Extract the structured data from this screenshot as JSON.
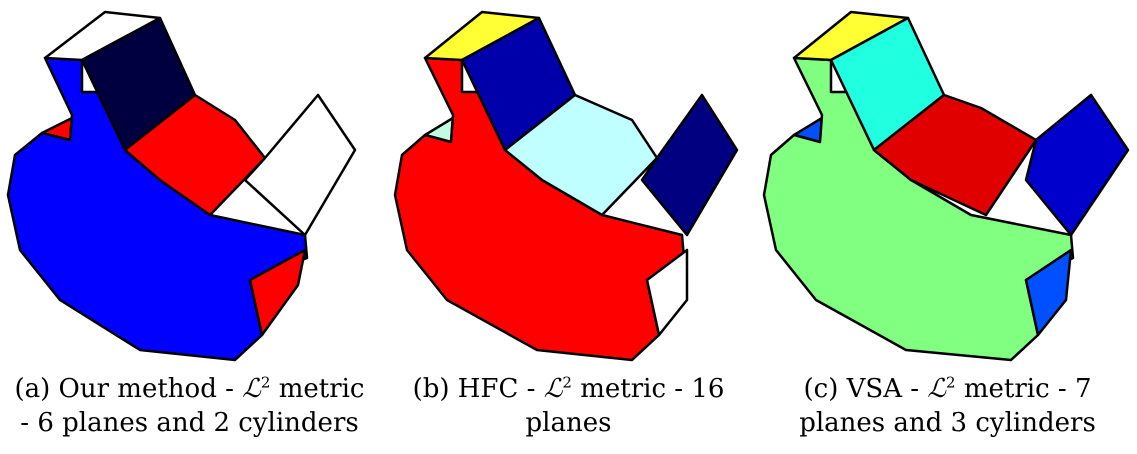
{
  "figure": {
    "panels": [
      {
        "id": "a",
        "caption_label": "(a) Our method -",
        "metric_symbol": "ℒ",
        "metric_exp": "2",
        "caption_rest": "metric",
        "caption_line2": "- 6 planes and 2 cylinders",
        "colors": {
          "body": "#0000ff",
          "top_left": "#ffffff",
          "back_face": "#000040",
          "middle": "#ff0000",
          "right_box": "#ffffff",
          "small_right": "#ff0000",
          "sliver": "#ff0000"
        }
      },
      {
        "id": "b",
        "caption_label": "(b) HFC -",
        "metric_symbol": "ℒ",
        "metric_exp": "2",
        "caption_rest": "metric - 16",
        "caption_line2": "planes",
        "colors": {
          "body": "#ff0000",
          "top_left": "#ffff33",
          "back_face": "#0000aa",
          "middle": "#c0ffff",
          "right_box": "#000080",
          "small_right": "#ffffff",
          "sliver": "#c0ffe0"
        }
      },
      {
        "id": "c",
        "caption_label": "(c) VSA -",
        "metric_symbol": "ℒ",
        "metric_exp": "2",
        "caption_rest": "metric - 7",
        "caption_line2": "planes and 3 cylinders",
        "colors": {
          "body": "#80ff80",
          "top_left": "#ffff33",
          "back_face": "#20ffe0",
          "middle": "#e00000",
          "right_box": "#0000cc",
          "small_right": "#0050ff",
          "sliver": "#0050ff"
        }
      }
    ]
  }
}
